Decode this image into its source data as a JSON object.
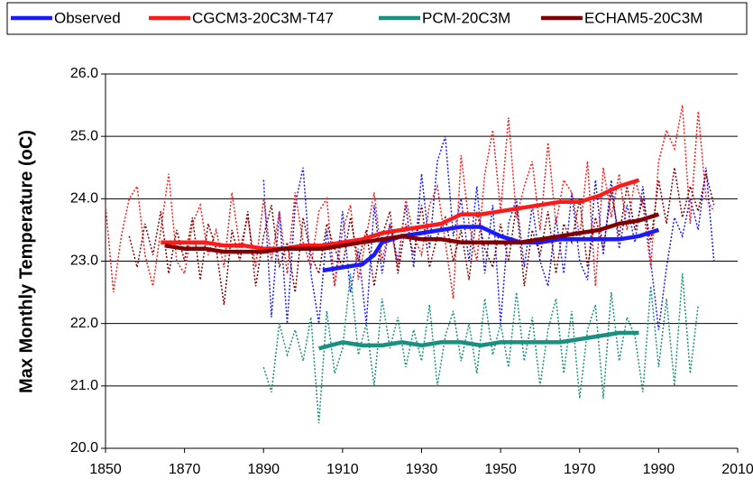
{
  "chart_data": {
    "type": "line",
    "y_label": "Max Monthly Temperature (oC)",
    "xlim": [
      1850,
      2010
    ],
    "xticks": [
      1850,
      1870,
      1890,
      1910,
      1930,
      1950,
      1970,
      1990,
      2010
    ],
    "ylim": [
      20,
      26
    ],
    "yticks": [
      {
        "value": 20,
        "label": "20.0"
      },
      {
        "value": 21,
        "label": "21.0"
      },
      {
        "value": 22,
        "label": "22.0"
      },
      {
        "value": 23,
        "label": "23.0"
      },
      {
        "value": 24,
        "label": "24.0"
      },
      {
        "value": 25,
        "label": "25.0"
      },
      {
        "value": 26,
        "label": "26.0"
      }
    ],
    "grid": true,
    "series": [
      {
        "name": "Observed",
        "color": "#1a1aff",
        "x": [
          1905,
          1910,
          1915,
          1918,
          1920,
          1925,
          1930,
          1935,
          1940,
          1945,
          1950,
          1955,
          1960,
          1965,
          1970,
          1975,
          1980,
          1985,
          1990
        ],
        "values": [
          22.85,
          22.9,
          22.95,
          23.1,
          23.3,
          23.4,
          23.45,
          23.5,
          23.55,
          23.55,
          23.4,
          23.3,
          23.3,
          23.35,
          23.35,
          23.35,
          23.35,
          23.4,
          23.5
        ],
        "raw_x": [
          1890,
          1892,
          1894,
          1896,
          1898,
          1900,
          1902,
          1904,
          1906,
          1908,
          1910,
          1912,
          1914,
          1916,
          1918,
          1920,
          1922,
          1924,
          1926,
          1928,
          1930,
          1932,
          1934,
          1936,
          1938,
          1940,
          1942,
          1944,
          1946,
          1948,
          1950,
          1952,
          1954,
          1956,
          1958,
          1960,
          1962,
          1964,
          1966,
          1968,
          1970,
          1972,
          1974,
          1976,
          1978,
          1980,
          1982,
          1984,
          1986,
          1988,
          1990,
          1992,
          1994,
          1996,
          1998,
          2000,
          2002,
          2004
        ],
        "raw_values": [
          24.3,
          22.1,
          23.8,
          22.0,
          23.9,
          24.5,
          22.8,
          22.0,
          23.5,
          22.6,
          23.8,
          22.5,
          23.2,
          22.0,
          23.9,
          22.8,
          23.6,
          23.0,
          23.9,
          22.9,
          24.4,
          23.2,
          24.6,
          25.0,
          23.4,
          24.0,
          23.0,
          24.2,
          22.8,
          23.9,
          22.0,
          23.6,
          24.0,
          22.9,
          23.9,
          23.0,
          22.6,
          23.7,
          22.8,
          24.1,
          23.0,
          22.7,
          24.3,
          23.1,
          24.3,
          23.2,
          23.9,
          23.3,
          24.2,
          23.0,
          21.9,
          22.9,
          23.7,
          23.4,
          24.0,
          23.5,
          24.5,
          23.0
        ]
      },
      {
        "name": "CGCM3-20C3M-T47",
        "color": "#ff1a1a",
        "x": [
          1864,
          1870,
          1875,
          1880,
          1885,
          1890,
          1895,
          1900,
          1905,
          1910,
          1915,
          1920,
          1925,
          1930,
          1935,
          1940,
          1945,
          1950,
          1955,
          1960,
          1965,
          1970,
          1975,
          1980,
          1985
        ],
        "values": [
          23.3,
          23.3,
          23.3,
          23.25,
          23.25,
          23.2,
          23.2,
          23.25,
          23.25,
          23.3,
          23.35,
          23.45,
          23.5,
          23.55,
          23.6,
          23.75,
          23.75,
          23.8,
          23.85,
          23.9,
          23.95,
          23.95,
          24.05,
          24.2,
          24.3
        ],
        "raw_x": [
          1850,
          1852,
          1854,
          1856,
          1858,
          1860,
          1862,
          1864,
          1866,
          1868,
          1870,
          1872,
          1874,
          1876,
          1878,
          1880,
          1882,
          1884,
          1886,
          1888,
          1890,
          1892,
          1894,
          1896,
          1898,
          1900,
          1902,
          1904,
          1906,
          1908,
          1910,
          1912,
          1914,
          1916,
          1918,
          1920,
          1922,
          1924,
          1926,
          1928,
          1930,
          1932,
          1934,
          1936,
          1938,
          1940,
          1942,
          1944,
          1946,
          1948,
          1950,
          1952,
          1954,
          1956,
          1958,
          1960,
          1962,
          1964,
          1966,
          1968,
          1970,
          1972,
          1974,
          1976,
          1978,
          1980,
          1982,
          1984,
          1986,
          1988,
          1990,
          1992,
          1994,
          1996,
          1998,
          2000,
          2002,
          2004
        ],
        "raw_values": [
          23.9,
          22.5,
          23.4,
          24.0,
          24.2,
          23.1,
          22.6,
          23.5,
          24.4,
          23.0,
          22.8,
          23.6,
          23.9,
          23.1,
          23.5,
          22.9,
          24.1,
          23.2,
          23.7,
          22.9,
          24.0,
          23.0,
          23.8,
          22.8,
          24.1,
          23.3,
          22.9,
          23.8,
          24.0,
          22.6,
          23.5,
          23.9,
          22.7,
          23.4,
          24.1,
          23.0,
          23.6,
          22.9,
          24.0,
          23.4,
          23.1,
          23.9,
          24.2,
          23.3,
          22.4,
          24.7,
          23.6,
          23.0,
          24.4,
          25.1,
          23.8,
          25.3,
          23.7,
          24.2,
          24.6,
          23.5,
          24.9,
          23.6,
          24.3,
          24.1,
          23.4,
          24.6,
          22.6,
          24.5,
          23.7,
          24.4,
          23.5,
          24.3,
          23.9,
          22.9,
          24.6,
          25.1,
          24.8,
          25.5,
          23.6,
          25.4,
          24.0,
          23.8
        ]
      },
      {
        "name": "PCM-20C3M",
        "color": "#1a9080",
        "x": [
          1904,
          1910,
          1915,
          1920,
          1925,
          1930,
          1935,
          1940,
          1945,
          1950,
          1955,
          1960,
          1965,
          1970,
          1975,
          1980,
          1985
        ],
        "values": [
          21.6,
          21.7,
          21.65,
          21.65,
          21.7,
          21.65,
          21.7,
          21.7,
          21.65,
          21.7,
          21.7,
          21.7,
          21.7,
          21.75,
          21.8,
          21.85,
          21.85
        ],
        "raw_x": [
          1890,
          1892,
          1894,
          1896,
          1898,
          1900,
          1902,
          1904,
          1906,
          1908,
          1910,
          1912,
          1914,
          1916,
          1918,
          1920,
          1922,
          1924,
          1926,
          1928,
          1930,
          1932,
          1934,
          1936,
          1938,
          1940,
          1942,
          1944,
          1946,
          1948,
          1950,
          1952,
          1954,
          1956,
          1958,
          1960,
          1962,
          1964,
          1966,
          1968,
          1970,
          1972,
          1974,
          1976,
          1978,
          1980,
          1982,
          1984,
          1986,
          1988,
          1990,
          1992,
          1994,
          1996,
          1998,
          2000
        ],
        "raw_values": [
          21.3,
          20.9,
          22.0,
          21.5,
          21.9,
          21.4,
          22.1,
          20.4,
          22.2,
          21.2,
          21.6,
          22.8,
          21.5,
          22.0,
          21.0,
          22.4,
          21.6,
          22.1,
          21.3,
          21.9,
          21.4,
          22.3,
          21.0,
          21.8,
          22.2,
          21.4,
          22.0,
          21.2,
          22.4,
          21.5,
          22.0,
          21.3,
          22.5,
          21.4,
          22.1,
          21.0,
          21.9,
          22.4,
          21.2,
          22.2,
          20.8,
          21.9,
          22.3,
          20.8,
          22.5,
          21.4,
          22.1,
          21.8,
          20.9,
          22.6,
          21.3,
          22.4,
          21.0,
          22.8,
          21.2,
          22.3
        ]
      },
      {
        "name": "ECHAM5-20C3M",
        "color": "#800000",
        "x": [
          1865,
          1870,
          1875,
          1880,
          1885,
          1890,
          1895,
          1900,
          1905,
          1910,
          1915,
          1920,
          1925,
          1930,
          1935,
          1940,
          1945,
          1950,
          1955,
          1960,
          1965,
          1970,
          1975,
          1980,
          1985,
          1990
        ],
        "values": [
          23.25,
          23.2,
          23.2,
          23.15,
          23.15,
          23.15,
          23.2,
          23.2,
          23.2,
          23.25,
          23.3,
          23.35,
          23.4,
          23.35,
          23.35,
          23.3,
          23.3,
          23.3,
          23.3,
          23.35,
          23.4,
          23.45,
          23.5,
          23.6,
          23.65,
          23.75
        ],
        "raw_x": [
          1856,
          1858,
          1860,
          1862,
          1864,
          1866,
          1868,
          1870,
          1872,
          1874,
          1876,
          1878,
          1880,
          1882,
          1884,
          1886,
          1888,
          1890,
          1892,
          1894,
          1896,
          1898,
          1900,
          1902,
          1904,
          1906,
          1908,
          1910,
          1912,
          1914,
          1916,
          1918,
          1920,
          1922,
          1924,
          1926,
          1928,
          1930,
          1932,
          1934,
          1936,
          1938,
          1940,
          1942,
          1944,
          1946,
          1948,
          1950,
          1952,
          1954,
          1956,
          1958,
          1960,
          1962,
          1964,
          1966,
          1968,
          1970,
          1972,
          1974,
          1976,
          1978,
          1980,
          1982,
          1984,
          1986,
          1988,
          1990,
          1992,
          1994,
          1996,
          1998,
          2000,
          2002,
          2004
        ],
        "raw_values": [
          23.4,
          22.9,
          23.6,
          23.1,
          23.8,
          22.8,
          23.5,
          23.0,
          23.7,
          22.7,
          23.6,
          23.2,
          22.3,
          23.5,
          23.0,
          23.8,
          22.6,
          23.4,
          23.9,
          22.9,
          23.3,
          22.5,
          23.7,
          23.1,
          22.8,
          23.6,
          23.2,
          22.9,
          23.7,
          23.0,
          23.5,
          22.6,
          23.4,
          23.8,
          22.8,
          23.6,
          23.1,
          23.9,
          22.9,
          23.4,
          23.7,
          23.0,
          23.5,
          22.7,
          23.8,
          23.2,
          22.9,
          23.6,
          23.0,
          23.9,
          22.6,
          23.5,
          23.1,
          23.8,
          22.8,
          23.6,
          23.3,
          24.0,
          22.9,
          23.7,
          23.2,
          24.1,
          23.4,
          24.2,
          23.5,
          24.0,
          23.3,
          24.3,
          23.6,
          24.5,
          23.7,
          24.2,
          23.8,
          24.4,
          23.9
        ]
      }
    ]
  }
}
